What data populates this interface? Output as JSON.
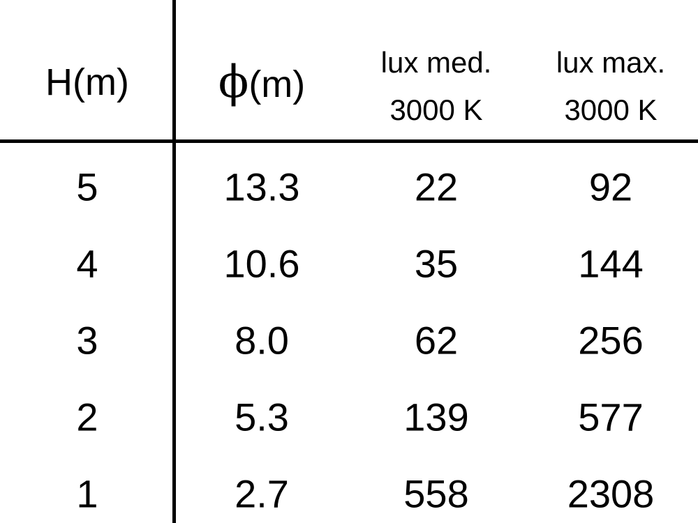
{
  "table": {
    "headers": [
      {
        "line1": "H(m)"
      },
      {
        "symbol": "ϕ",
        "line1": "(m)"
      },
      {
        "line1": "lux med.",
        "line2": "3000 K"
      },
      {
        "line1": "lux max.",
        "line2": "3000 K"
      }
    ],
    "rows": [
      [
        "5",
        "13.3",
        "22",
        "92"
      ],
      [
        "4",
        "10.6",
        "35",
        "144"
      ],
      [
        "3",
        "8.0",
        "62",
        "256"
      ],
      [
        "2",
        "5.3",
        "139",
        "577"
      ],
      [
        "1",
        "2.7",
        "558",
        "2308"
      ]
    ]
  }
}
